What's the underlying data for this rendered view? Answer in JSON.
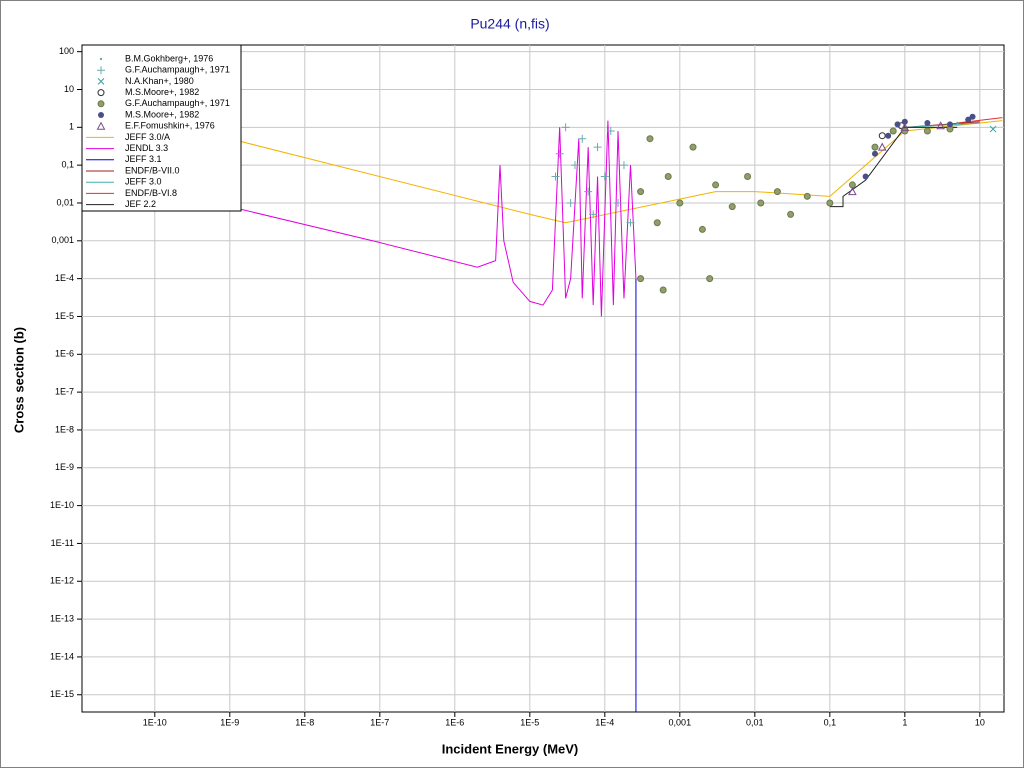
{
  "chart_data": {
    "type": "scatter",
    "title": "Pu244 (n,fis)",
    "x_label": "Incident Energy (MeV)",
    "y_label": "Cross section (b)",
    "log_x": true,
    "log_y": true,
    "grid": true,
    "legend": "top-left",
    "xlim": [
      1.07e-11,
      21
    ],
    "ylim": [
      3.5e-16,
      150
    ],
    "xticks": [
      {
        "value": 1e-10,
        "label": "1E-10"
      },
      {
        "value": 1e-09,
        "label": "1E-9"
      },
      {
        "value": 1e-08,
        "label": "1E-8"
      },
      {
        "value": 1e-07,
        "label": "1E-7"
      },
      {
        "value": 1e-06,
        "label": "1E-6"
      },
      {
        "value": 1e-05,
        "label": "1E-5"
      },
      {
        "value": 0.0001,
        "label": "1E-4"
      },
      {
        "value": 0.001,
        "label": "0,001"
      },
      {
        "value": 0.01,
        "label": "0,01"
      },
      {
        "value": 0.1,
        "label": "0,1"
      },
      1,
      10
    ],
    "yticks": [
      100,
      10,
      1,
      {
        "value": 0.1,
        "label": "0,1"
      },
      {
        "value": 0.01,
        "label": "0,01"
      },
      {
        "value": 0.001,
        "label": "0,001"
      },
      {
        "value": 0.0001,
        "label": "1E-4"
      },
      {
        "value": 1e-05,
        "label": "1E-5"
      },
      {
        "value": 1e-06,
        "label": "1E-6"
      },
      {
        "value": 1e-07,
        "label": "1E-7"
      },
      {
        "value": 1e-08,
        "label": "1E-8"
      },
      {
        "value": 1e-09,
        "label": "1E-9"
      },
      {
        "value": 1e-10,
        "label": "1E-10"
      },
      {
        "value": 1e-11,
        "label": "1E-11"
      },
      {
        "value": 1e-12,
        "label": "1E-12"
      },
      {
        "value": 1e-13,
        "label": "1E-13"
      },
      {
        "value": 1e-14,
        "label": "1E-14"
      },
      {
        "value": 1e-15,
        "label": "1E-15"
      }
    ],
    "series": [
      {
        "name": "B.M.Gokhberg+, 1976",
        "type": "scatter",
        "marker": "dot",
        "color": "#6aabb0",
        "x": [
          1,
          2,
          5
        ],
        "values": [
          1.1,
          1.2,
          1.3
        ]
      },
      {
        "name": "G.F.Auchampaugh+, 1971",
        "type": "scatter",
        "marker": "plus",
        "color": "#6aabb0",
        "x": [
          2.2e-05,
          2.5e-05,
          3e-05,
          3.5e-05,
          4e-05,
          5e-05,
          6e-05,
          7e-05,
          8e-05,
          0.0001,
          0.00012,
          0.00015,
          0.00018,
          0.00022
        ],
        "values": [
          0.05,
          0.2,
          1,
          0.01,
          0.1,
          0.5,
          0.02,
          0.005,
          0.3,
          0.05,
          0.8,
          0.01,
          0.1,
          0.003
        ]
      },
      {
        "name": "N.A.Khan+, 1980",
        "type": "scatter",
        "marker": "cross",
        "color": "#3aa0a0",
        "x": [
          15
        ],
        "values": [
          0.9
        ]
      },
      {
        "name": "M.S.Moore+, 1982",
        "type": "scatter",
        "marker": "circle",
        "color": "#303030",
        "x": [
          0.5,
          0.9
        ],
        "values": [
          0.6,
          1.1
        ]
      },
      {
        "name": "G.F.Auchampaugh+, 1971",
        "type": "scatter",
        "marker": "circle-filled",
        "color": "#8f9e6a",
        "x": [
          0.0003,
          0.0004,
          0.0005,
          0.0007,
          0.001,
          0.0015,
          0.002,
          0.003,
          0.005,
          0.008,
          0.012,
          0.02,
          0.03,
          0.05,
          0.1,
          0.2,
          0.4,
          0.7,
          1,
          2,
          4,
          0.0003,
          0.0006,
          0.0025
        ],
        "values": [
          0.02,
          0.5,
          0.003,
          0.05,
          0.01,
          0.3,
          0.002,
          0.03,
          0.008,
          0.05,
          0.01,
          0.02,
          0.005,
          0.015,
          0.01,
          0.03,
          0.3,
          0.8,
          0.8,
          0.8,
          0.9,
          0.0001,
          5e-05,
          0.0001
        ]
      },
      {
        "name": "M.S.Moore+, 1982",
        "type": "scatter",
        "marker": "disc",
        "color": "#4a4f8a",
        "x": [
          0.3,
          0.4,
          0.6,
          0.8,
          1,
          2,
          4,
          7,
          8
        ],
        "values": [
          0.05,
          0.2,
          0.6,
          1.2,
          1.4,
          1.3,
          1.2,
          1.6,
          1.9
        ]
      },
      {
        "name": "E.F.Fomushkin+, 1976",
        "type": "scatter",
        "marker": "triangle",
        "color": "#7a4a8a",
        "x": [
          0.2,
          0.5,
          1,
          3
        ],
        "values": [
          0.02,
          0.3,
          1,
          1.1
        ]
      },
      {
        "name": "JEFF 3.0/A",
        "type": "line",
        "color": "#f0b400",
        "x": [
          1e-11,
          1e-05,
          3e-05,
          0.003,
          0.01,
          0.1,
          1,
          20
        ],
        "values": [
          5,
          0.005,
          0.003,
          0.02,
          0.02,
          0.015,
          0.8,
          1.5
        ]
      },
      {
        "name": "JENDL 3.3",
        "type": "line",
        "color": "#e000e0",
        "x": [
          1e-11,
          1e-09,
          1e-07,
          2e-06,
          3.5e-06,
          4e-06,
          4.5e-06,
          6e-06,
          1e-05,
          1.5e-05,
          2e-05,
          2.5e-05,
          3e-05,
          3.5e-05,
          4.5e-05,
          5e-05,
          6e-05,
          7e-05,
          8e-05,
          9e-05,
          0.00011,
          0.00013,
          0.00015,
          0.00018,
          0.00022,
          0.00026
        ],
        "values": [
          0.08,
          0.008,
          0.0009,
          0.0002,
          0.0003,
          0.1,
          0.001,
          8e-05,
          2.5e-05,
          2e-05,
          5e-05,
          1,
          3e-05,
          0.0001,
          0.5,
          3e-05,
          0.3,
          2e-05,
          0.05,
          1e-05,
          1.5,
          2e-05,
          0.8,
          3e-05,
          0.1,
          0.0001
        ]
      },
      {
        "name": "JEFF 3.1",
        "type": "line",
        "color": "#0000e0",
        "x": [
          0.00026,
          0.00026
        ],
        "values": [
          0.0001,
          3.5e-16
        ]
      },
      {
        "name": "ENDF/B-VII.0",
        "type": "line",
        "color": "#a02020",
        "x": [
          1,
          10
        ],
        "values": [
          1,
          1.4
        ]
      },
      {
        "name": "JEFF 3.0",
        "type": "line",
        "color": "#40b0b0",
        "x": [
          1,
          10
        ],
        "values": [
          1,
          1.3
        ]
      },
      {
        "name": "ENDF/B-VI.8",
        "type": "line",
        "color": "#e03030",
        "x": [
          5,
          20
        ],
        "values": [
          1.3,
          1.8
        ]
      },
      {
        "name": "JEF 2.2",
        "type": "line",
        "color": "#202020",
        "x": [
          0.1,
          0.15,
          0.15,
          0.3,
          1,
          5
        ],
        "values": [
          0.008,
          0.008,
          0.015,
          0.04,
          1,
          1
        ]
      }
    ]
  }
}
